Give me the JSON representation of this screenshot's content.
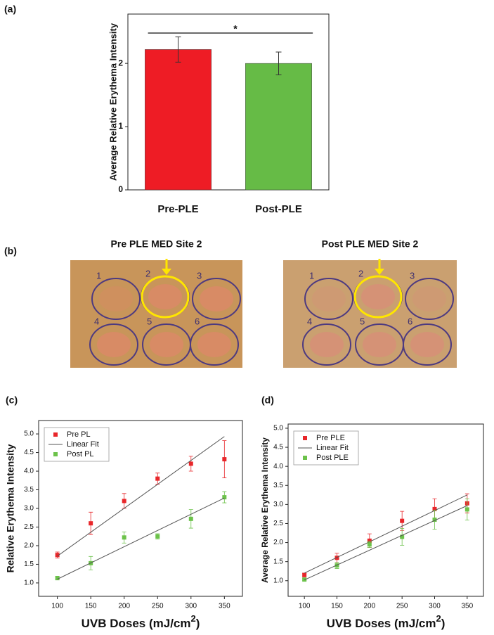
{
  "panel_labels": [
    "(a)",
    "(b)",
    "(c)",
    "(d)"
  ],
  "photos": [
    {
      "title": "Pre PLE MED Site 2",
      "site_labels": [
        "1",
        "2",
        "3",
        "4",
        "5",
        "6"
      ]
    },
    {
      "title": "Post PLE MED Site 2",
      "site_labels": [
        "1",
        "2",
        "3",
        "4",
        "5",
        "6"
      ]
    }
  ],
  "chart_data": [
    {
      "type": "bar",
      "ylabel": "Average Relative Erythema Intensity",
      "categories": [
        "Pre-PLE",
        "Post-PLE"
      ],
      "values": [
        2.22,
        2.0
      ],
      "errors": [
        0.2,
        0.18
      ],
      "colors": [
        "#ee1c25",
        "#66bb46"
      ],
      "ylim": [
        0,
        2.78
      ],
      "yticks": [
        0,
        1,
        2
      ],
      "annotation": {
        "text": "*",
        "y": 2.48
      }
    },
    {
      "type": "scatter",
      "ylabel": "Relative Erythema Intensity",
      "xlabel": [
        "UVB Doses (mJ/cm",
        "2",
        ")"
      ],
      "xlim": [
        72,
        377
      ],
      "xticks": [
        100,
        150,
        200,
        250,
        300,
        350
      ],
      "ylim": [
        0.64,
        5.36
      ],
      "yticks": [
        {
          "value": 1,
          "label": "1.0"
        },
        1.5,
        {
          "value": 2,
          "label": "2.0"
        },
        2.5,
        {
          "value": 3,
          "label": "3.0"
        },
        3.5,
        {
          "value": 4,
          "label": "4.0"
        },
        4.5,
        {
          "value": 5,
          "label": "5.0"
        }
      ],
      "legend": "top-left",
      "series": [
        {
          "name": "Pre PL",
          "mode": "markers",
          "color": "#e8262a",
          "x": [
            100,
            150,
            200,
            250,
            300,
            350
          ],
          "values": [
            1.75,
            2.6,
            3.2,
            3.8,
            4.2,
            4.32
          ],
          "errors": [
            0.08,
            0.3,
            0.2,
            0.15,
            0.2,
            0.5
          ]
        },
        {
          "name": "Linear Fit",
          "mode": "line",
          "color": "#555555",
          "x": [
            100,
            350
          ],
          "values": [
            1.72,
            4.93
          ]
        },
        {
          "name": "Post PL",
          "mode": "markers",
          "color": "#6cc24a",
          "x": [
            100,
            150,
            200,
            250,
            300,
            350
          ],
          "values": [
            1.13,
            1.53,
            2.22,
            2.25,
            2.72,
            3.3
          ],
          "errors": [
            0.05,
            0.18,
            0.15,
            0.07,
            0.25,
            0.15
          ]
        },
        {
          "mode": "line",
          "color": "#555555",
          "x": [
            100,
            350
          ],
          "values": [
            1.1,
            3.28
          ]
        }
      ]
    },
    {
      "type": "scatter",
      "ylabel": "Average Relative Erythema Intensity",
      "xlabel": [
        "UVB Doses (mJ/cm",
        "2",
        ")"
      ],
      "xlim": [
        75,
        375
      ],
      "xticks": [
        100,
        150,
        200,
        250,
        300,
        350
      ],
      "ylim": [
        0.59,
        5.11
      ],
      "yticks": [
        {
          "value": 1,
          "label": "1.0"
        },
        1.5,
        {
          "value": 2,
          "label": "2.0"
        },
        2.5,
        {
          "value": 3,
          "label": "3.0"
        },
        3.5,
        {
          "value": 4,
          "label": "4.0"
        },
        4.5,
        {
          "value": 5,
          "label": "5.0"
        }
      ],
      "legend": "top-left",
      "series": [
        {
          "name": "Pre PLE",
          "mode": "markers",
          "color": "#e8262a",
          "x": [
            100,
            150,
            200,
            250,
            300,
            350
          ],
          "values": [
            1.15,
            1.6,
            2.05,
            2.57,
            2.88,
            3.03
          ],
          "errors": [
            0.05,
            0.12,
            0.18,
            0.25,
            0.27,
            0.25
          ]
        },
        {
          "name": "Linear Fit",
          "mode": "line",
          "color": "#555555",
          "x": [
            100,
            350
          ],
          "values": [
            1.2,
            3.25
          ]
        },
        {
          "name": "Post PLE",
          "mode": "markers",
          "color": "#6cc24a",
          "x": [
            100,
            150,
            200,
            250,
            300,
            350
          ],
          "values": [
            1.03,
            1.4,
            1.95,
            2.15,
            2.6,
            2.87
          ],
          "errors": [
            0.03,
            0.08,
            0.08,
            0.22,
            0.25,
            0.28
          ]
        },
        {
          "mode": "line",
          "color": "#555555",
          "x": [
            100,
            350
          ],
          "values": [
            1.02,
            2.97
          ]
        }
      ]
    }
  ]
}
